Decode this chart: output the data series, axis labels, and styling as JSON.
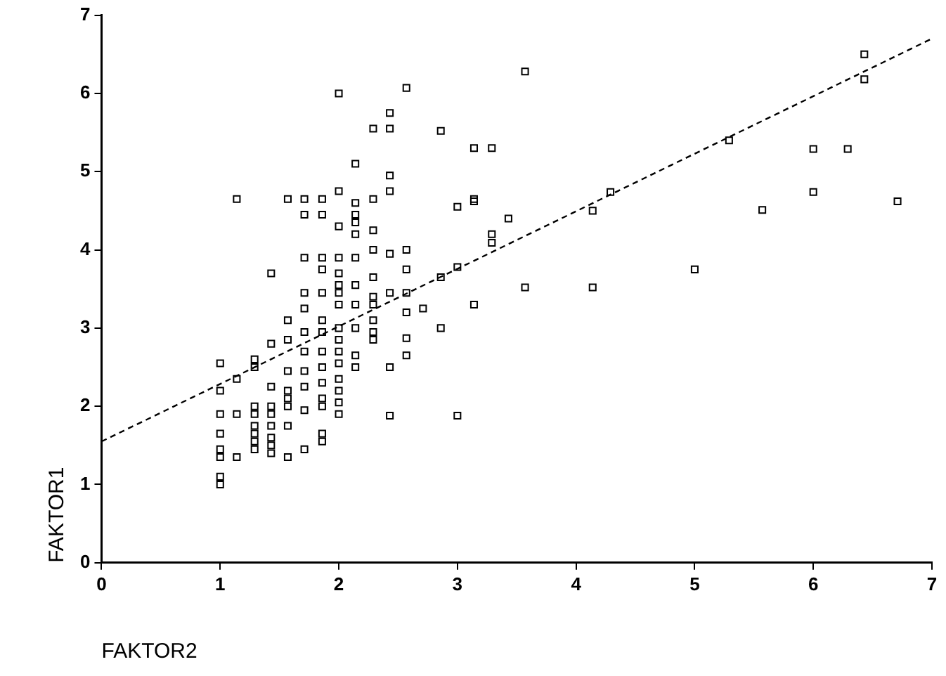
{
  "chart_data": {
    "type": "scatter",
    "xlabel": "FAKTOR2",
    "ylabel": "FAKTOR1",
    "xlim": [
      0,
      7
    ],
    "ylim": [
      0,
      7
    ],
    "xticks": [
      0,
      1,
      2,
      3,
      4,
      5,
      6,
      7
    ],
    "yticks": [
      0,
      1,
      2,
      3,
      4,
      5,
      6,
      7
    ],
    "grid": false,
    "legend": false,
    "marker": "square",
    "series": [
      {
        "color": "#000000",
        "x": [
          1,
          1,
          1,
          1,
          1,
          1,
          1,
          1,
          1.14,
          1.14,
          1.14,
          1.14,
          1.29,
          1.29,
          1.29,
          1.29,
          1.29,
          1.29,
          1.29,
          1.29,
          1.43,
          1.43,
          1.43,
          1.43,
          1.43,
          1.43,
          1.43,
          1.43,
          1.43,
          1.57,
          1.57,
          1.57,
          1.57,
          1.57,
          1.57,
          1.57,
          1.57,
          1.57,
          1.71,
          1.71,
          1.71,
          1.71,
          1.71,
          1.71,
          1.71,
          1.71,
          1.71,
          1.71,
          1.71,
          1.86,
          1.86,
          1.86,
          1.86,
          1.86,
          1.86,
          1.86,
          1.86,
          1.86,
          1.86,
          1.86,
          1.86,
          1.86,
          1.86,
          2,
          2,
          2,
          2,
          2,
          2,
          2,
          2,
          2,
          2,
          2,
          2,
          2,
          2,
          2,
          2,
          2.14,
          2.14,
          2.14,
          2.14,
          2.14,
          2.14,
          2.14,
          2.14,
          2.14,
          2.14,
          2.14,
          2.29,
          2.29,
          2.29,
          2.29,
          2.29,
          2.29,
          2.29,
          2.29,
          2.29,
          2.29,
          2.43,
          2.43,
          2.43,
          2.43,
          2.43,
          2.43,
          2.43,
          2.43,
          2.57,
          2.57,
          2.57,
          2.57,
          2.57,
          2.57,
          2.57,
          2.71,
          2.86,
          2.86,
          2.86,
          3,
          3,
          3,
          3.14,
          3.14,
          3.14,
          3.14,
          3.29,
          3.29,
          3.29,
          3.43,
          3.57,
          3.57,
          4.14,
          4.29,
          4.14,
          5,
          5.29,
          5.57,
          6,
          6,
          6.29,
          6.43,
          6.43,
          6.71
        ],
        "values": [
          2.55,
          2.2,
          1.9,
          1.65,
          1.45,
          1.35,
          1.1,
          1.0,
          4.65,
          2.35,
          1.9,
          1.35,
          2.6,
          2.5,
          2.0,
          1.9,
          1.75,
          1.65,
          1.55,
          1.45,
          3.7,
          2.8,
          2.25,
          2.0,
          1.9,
          1.75,
          1.6,
          1.5,
          1.4,
          4.65,
          3.1,
          2.85,
          2.45,
          2.2,
          2.1,
          2.0,
          1.75,
          1.35,
          4.65,
          4.45,
          3.9,
          3.45,
          3.25,
          2.95,
          2.7,
          2.45,
          2.25,
          1.95,
          1.45,
          4.65,
          4.45,
          3.9,
          3.75,
          3.45,
          3.1,
          2.95,
          2.7,
          2.5,
          2.3,
          2.1,
          2.0,
          1.65,
          1.55,
          6.0,
          4.75,
          4.3,
          3.9,
          3.7,
          3.55,
          3.45,
          3.3,
          3.0,
          2.85,
          2.7,
          2.55,
          2.35,
          2.2,
          2.05,
          1.9,
          5.1,
          4.6,
          4.45,
          4.35,
          4.2,
          3.9,
          3.55,
          3.3,
          3.0,
          2.65,
          2.5,
          5.55,
          4.65,
          4.25,
          4.0,
          3.65,
          3.4,
          3.3,
          3.1,
          2.95,
          2.85,
          5.75,
          5.55,
          4.95,
          4.75,
          3.95,
          3.45,
          2.5,
          1.88,
          6.07,
          4.0,
          3.75,
          3.45,
          3.2,
          2.87,
          2.65,
          3.25,
          5.52,
          3.65,
          3.0,
          4.55,
          3.78,
          1.88,
          5.3,
          4.65,
          3.3,
          4.62,
          5.3,
          4.2,
          4.09,
          4.4,
          6.28,
          3.52,
          3.52,
          4.74,
          4.5,
          3.75,
          5.4,
          4.51,
          5.29,
          4.74,
          5.29,
          6.5,
          6.18,
          4.62
        ]
      },
      {
        "type": "line",
        "color": "#000000",
        "line_style": "dashed",
        "marker": "none",
        "x": [
          0,
          7
        ],
        "values": [
          1.55,
          6.7
        ]
      }
    ]
  }
}
